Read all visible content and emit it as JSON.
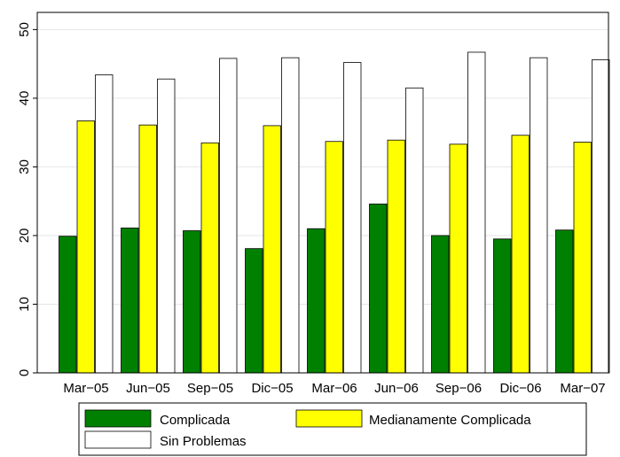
{
  "chart_data": {
    "type": "bar",
    "title": "",
    "xlabel": "",
    "ylabel": "",
    "categories": [
      "Mar−05",
      "Jun−05",
      "Sep−05",
      "Dic−05",
      "Mar−06",
      "Jun−06",
      "Sep−06",
      "Dic−06",
      "Mar−07"
    ],
    "ylim": [
      0,
      52.5
    ],
    "yticks": [
      0,
      10,
      20,
      30,
      40,
      50
    ],
    "grid": true,
    "legend_position": "bottom",
    "series": [
      {
        "name": "Complicada",
        "color": "#008000",
        "values": [
          19.9,
          21.1,
          20.7,
          18.1,
          21.0,
          24.6,
          20.0,
          19.5,
          20.8
        ]
      },
      {
        "name": "Medianamente Complicada",
        "color": "#ffff00",
        "values": [
          36.7,
          36.1,
          33.5,
          36.0,
          33.7,
          33.9,
          33.3,
          34.6,
          33.6
        ]
      },
      {
        "name": "Sin Problemas",
        "color": "#ffffff",
        "values": [
          43.4,
          42.8,
          45.8,
          45.9,
          45.2,
          41.5,
          46.7,
          45.9,
          45.6
        ]
      }
    ]
  }
}
